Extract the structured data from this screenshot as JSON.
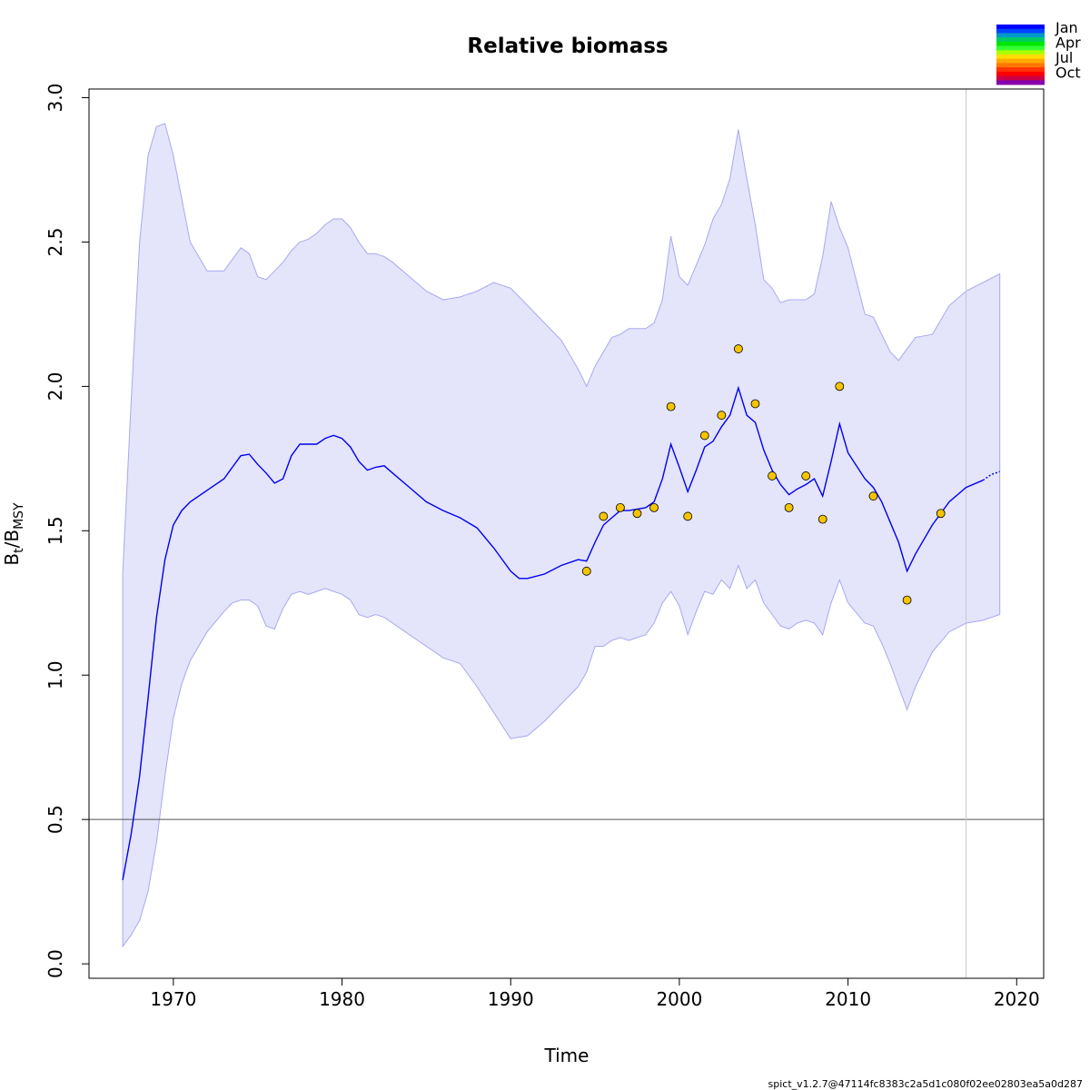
{
  "chart_data": {
    "type": "line",
    "title": "Relative biomass",
    "xlabel": "Time",
    "ylabel_main": "B",
    "ylabel_sub1": "t",
    "ylabel_sep": "/B",
    "ylabel_sub2": "MSY",
    "xlim": [
      1965,
      2021.6
    ],
    "ylim": [
      -0.05,
      3.03
    ],
    "x_ticks": [
      1970,
      1980,
      1990,
      2000,
      2010,
      2020
    ],
    "x_tick_labels": [
      "1970",
      "1980",
      "1990",
      "2000",
      "2010",
      "2020"
    ],
    "y_ticks": [
      0,
      0.5,
      1,
      1.5,
      2,
      2.5,
      3
    ],
    "y_tick_labels": [
      "0.0",
      "0.5",
      "1.0",
      "1.5",
      "2.0",
      "2.5",
      "3.0"
    ],
    "reference_line_y": 0.5,
    "vertical_line_x": 2017,
    "colors": {
      "estimate_line": "#0000ee",
      "ci_fill": "#e4e4fb",
      "ci_border": "#a8a8f0",
      "points": "#f4c400",
      "reference_line": "#555555",
      "vertical_line": "#c8c8d8"
    },
    "estimate": {
      "name": "",
      "x": [
        1967,
        1967.5,
        1968,
        1968.5,
        1969,
        1969.5,
        1970,
        1970.5,
        1971,
        1972,
        1973,
        1973.5,
        1974,
        1974.5,
        1975,
        1975.5,
        1976,
        1976.5,
        1977,
        1977.5,
        1978,
        1978.5,
        1979,
        1979.5,
        1980,
        1980.5,
        1981,
        1981.5,
        1982,
        1982.5,
        1983,
        1984,
        1985,
        1986,
        1987,
        1988,
        1989,
        1990,
        1990.5,
        1991,
        1992,
        1993,
        1994,
        1994.5,
        1995,
        1995.5,
        1996,
        1996.5,
        1997,
        1998,
        1998.5,
        1999,
        1999.5,
        2000,
        2000.5,
        2001,
        2001.5,
        2002,
        2002.5,
        2003,
        2003.5,
        2004,
        2004.5,
        2005,
        2005.5,
        2006,
        2006.5,
        2007,
        2007.5,
        2008,
        2008.5,
        2009,
        2009.5,
        2010,
        2011,
        2011.5,
        2012,
        2012.5,
        2013,
        2013.5,
        2014,
        2015,
        2016,
        2017,
        2018
      ],
      "y": [
        0.29,
        0.45,
        0.65,
        0.92,
        1.2,
        1.4,
        1.52,
        1.57,
        1.6,
        1.64,
        1.68,
        1.72,
        1.76,
        1.765,
        1.73,
        1.7,
        1.665,
        1.68,
        1.76,
        1.8,
        1.8,
        1.8,
        1.82,
        1.83,
        1.82,
        1.79,
        1.74,
        1.71,
        1.72,
        1.725,
        1.7,
        1.65,
        1.6,
        1.57,
        1.545,
        1.51,
        1.44,
        1.36,
        1.335,
        1.335,
        1.35,
        1.38,
        1.4,
        1.395,
        1.46,
        1.52,
        1.545,
        1.57,
        1.57,
        1.58,
        1.6,
        1.68,
        1.8,
        1.72,
        1.635,
        1.71,
        1.79,
        1.81,
        1.86,
        1.9,
        1.995,
        1.9,
        1.875,
        1.78,
        1.71,
        1.66,
        1.625,
        1.645,
        1.66,
        1.68,
        1.62,
        1.74,
        1.87,
        1.77,
        1.68,
        1.65,
        1.6,
        1.53,
        1.46,
        1.36,
        1.42,
        1.52,
        1.6,
        1.65,
        1.675
      ]
    },
    "forecast": {
      "x": [
        2018,
        2018.5,
        2019
      ],
      "y": [
        1.675,
        1.695,
        1.705
      ]
    },
    "ci_upper": {
      "x": [
        1967,
        1967.5,
        1968,
        1968.5,
        1969,
        1969.5,
        1970,
        1970.5,
        1971,
        1972,
        1973,
        1973.5,
        1974,
        1974.5,
        1975,
        1975.5,
        1976,
        1976.5,
        1977,
        1977.5,
        1978,
        1978.5,
        1979,
        1979.5,
        1980,
        1980.5,
        1981,
        1981.5,
        1982,
        1982.5,
        1983,
        1984,
        1985,
        1986,
        1987,
        1988,
        1989,
        1990,
        1991,
        1992,
        1993,
        1994,
        1994.5,
        1995,
        1995.5,
        1996,
        1996.5,
        1997,
        1998,
        1998.5,
        1999,
        1999.5,
        2000,
        2000.5,
        2001,
        2001.5,
        2002,
        2002.5,
        2003,
        2003.5,
        2004,
        2004.5,
        2005,
        2005.5,
        2006,
        2006.5,
        2007,
        2007.5,
        2008,
        2008.5,
        2009,
        2009.5,
        2010,
        2011,
        2011.5,
        2012,
        2012.5,
        2013,
        2013.5,
        2014,
        2015,
        2016,
        2017,
        2018,
        2019
      ],
      "y": [
        1.35,
        1.95,
        2.5,
        2.8,
        2.9,
        2.91,
        2.8,
        2.65,
        2.5,
        2.4,
        2.4,
        2.44,
        2.48,
        2.46,
        2.38,
        2.37,
        2.4,
        2.43,
        2.47,
        2.5,
        2.51,
        2.53,
        2.56,
        2.58,
        2.58,
        2.55,
        2.5,
        2.46,
        2.46,
        2.45,
        2.43,
        2.38,
        2.33,
        2.3,
        2.31,
        2.33,
        2.36,
        2.34,
        2.28,
        2.22,
        2.16,
        2.06,
        2.0,
        2.07,
        2.12,
        2.17,
        2.18,
        2.2,
        2.2,
        2.22,
        2.3,
        2.52,
        2.38,
        2.35,
        2.42,
        2.49,
        2.58,
        2.63,
        2.72,
        2.89,
        2.72,
        2.56,
        2.37,
        2.34,
        2.29,
        2.3,
        2.3,
        2.3,
        2.32,
        2.45,
        2.64,
        2.55,
        2.48,
        2.25,
        2.24,
        2.18,
        2.12,
        2.09,
        2.13,
        2.17,
        2.18,
        2.28,
        2.33,
        2.36,
        2.39
      ]
    },
    "ci_lower": {
      "x": [
        1967,
        1967.5,
        1968,
        1968.5,
        1969,
        1969.5,
        1970,
        1970.5,
        1971,
        1972,
        1973,
        1973.5,
        1974,
        1974.5,
        1975,
        1975.5,
        1976,
        1976.5,
        1977,
        1977.5,
        1978,
        1978.5,
        1979,
        1979.5,
        1980,
        1980.5,
        1981,
        1981.5,
        1982,
        1982.5,
        1983,
        1984,
        1985,
        1986,
        1987,
        1988,
        1989,
        1990,
        1991,
        1992,
        1993,
        1994,
        1994.5,
        1995,
        1995.5,
        1996,
        1996.5,
        1997,
        1998,
        1998.5,
        1999,
        1999.5,
        2000,
        2000.5,
        2001,
        2001.5,
        2002,
        2002.5,
        2003,
        2003.5,
        2004,
        2004.5,
        2005,
        2005.5,
        2006,
        2006.5,
        2007,
        2007.5,
        2008,
        2008.5,
        2009,
        2009.5,
        2010,
        2011,
        2011.5,
        2012,
        2012.5,
        2013,
        2013.5,
        2014,
        2015,
        2016,
        2017,
        2018,
        2019
      ],
      "y": [
        0.06,
        0.1,
        0.15,
        0.25,
        0.42,
        0.65,
        0.85,
        0.97,
        1.05,
        1.15,
        1.22,
        1.25,
        1.26,
        1.26,
        1.24,
        1.17,
        1.16,
        1.23,
        1.28,
        1.29,
        1.28,
        1.29,
        1.3,
        1.29,
        1.28,
        1.26,
        1.21,
        1.2,
        1.21,
        1.2,
        1.18,
        1.14,
        1.1,
        1.06,
        1.04,
        0.96,
        0.87,
        0.78,
        0.79,
        0.84,
        0.9,
        0.96,
        1.01,
        1.1,
        1.1,
        1.12,
        1.13,
        1.12,
        1.14,
        1.18,
        1.25,
        1.29,
        1.24,
        1.14,
        1.22,
        1.29,
        1.28,
        1.33,
        1.3,
        1.38,
        1.3,
        1.33,
        1.25,
        1.21,
        1.17,
        1.16,
        1.18,
        1.19,
        1.18,
        1.14,
        1.25,
        1.33,
        1.25,
        1.18,
        1.17,
        1.11,
        1.04,
        0.96,
        0.88,
        0.96,
        1.08,
        1.15,
        1.18,
        1.19,
        1.21
      ]
    },
    "observations": {
      "x": [
        1994.5,
        1995.5,
        1996.5,
        1997.5,
        1998.5,
        1999.5,
        2000.5,
        2001.5,
        2002.5,
        2003.5,
        2004.5,
        2005.5,
        2006.5,
        2007.5,
        2008.5,
        2009.5,
        2011.5,
        2013.5,
        2015.5
      ],
      "y": [
        1.36,
        1.55,
        1.58,
        1.56,
        1.58,
        1.93,
        1.55,
        1.83,
        1.9,
        2.13,
        1.94,
        1.69,
        1.58,
        1.69,
        1.54,
        2.0,
        1.62,
        1.26,
        1.56
      ]
    },
    "legend": {
      "placement": "top-right",
      "labels": [
        "Jan",
        "Apr",
        "Jul",
        "Oct"
      ],
      "gradient_colors": [
        "#0000ff",
        "#0044ff",
        "#0099cc",
        "#00cc66",
        "#00e600",
        "#33ff33",
        "#aaff00",
        "#ffdd00",
        "#ffaa00",
        "#ff7700",
        "#ff3300",
        "#ff0000",
        "#cc0044",
        "#8800aa"
      ]
    }
  },
  "footer_text": "spict_v1.2.7@47114fc8383c2a5d1c080f02ee02803ea5a0d287"
}
